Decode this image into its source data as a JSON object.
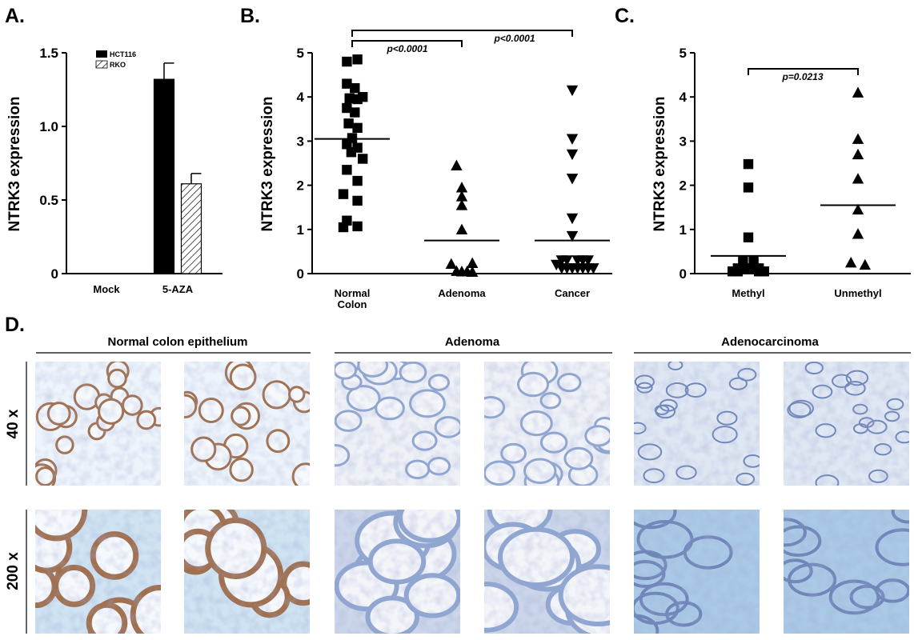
{
  "panels": {
    "A": {
      "letter": "A."
    },
    "B": {
      "letter": "B."
    },
    "C": {
      "letter": "C."
    },
    "D": {
      "letter": "D."
    }
  },
  "chart_data": [
    {
      "id": "A",
      "type": "bar",
      "ylabel": "NTRK3 expression",
      "categories": [
        "Mock",
        "5-AZA"
      ],
      "series": [
        {
          "name": "HCT116",
          "values": [
            0,
            1.32
          ],
          "errors": [
            0,
            0.11
          ],
          "color": "#000000",
          "pattern": "solid"
        },
        {
          "name": "RKO",
          "values": [
            0,
            0.61
          ],
          "errors": [
            0,
            0.07
          ],
          "color": "#ffffff",
          "pattern": "hatched"
        }
      ],
      "ylim": [
        0,
        1.5
      ],
      "yticks": [
        0,
        0.5,
        1.0,
        1.5
      ],
      "ytick_labels": [
        "0",
        "0.5",
        "1.0",
        "1.5"
      ],
      "legend": "top-left",
      "grid": false
    },
    {
      "id": "B",
      "type": "scatter",
      "ylabel": "NTRK3 expression",
      "categories": [
        "Normal Colon",
        "Adenoma",
        "Cancer"
      ],
      "category_labels": [
        [
          "Normal",
          "Colon"
        ],
        [
          "Adenoma"
        ],
        [
          "Cancer"
        ]
      ],
      "ylim": [
        0,
        5
      ],
      "yticks": [
        0,
        1,
        2,
        3,
        4,
        5
      ],
      "groups": [
        {
          "name": "Normal Colon",
          "marker": "square",
          "mean": 3.05,
          "points": [
            [
              -0.3,
              4.8
            ],
            [
              0.3,
              4.85
            ],
            [
              -0.3,
              4.3
            ],
            [
              0.15,
              4.2
            ],
            [
              -0.15,
              3.97
            ],
            [
              0.3,
              3.95
            ],
            [
              0.6,
              4.0
            ],
            [
              -0.3,
              3.75
            ],
            [
              0.15,
              3.65
            ],
            [
              -0.2,
              3.4
            ],
            [
              0.3,
              3.3
            ],
            [
              0,
              3.07
            ],
            [
              -0.3,
              2.93
            ],
            [
              0.3,
              2.85
            ],
            [
              -0.05,
              2.75
            ],
            [
              0.6,
              2.6
            ],
            [
              -0.3,
              2.35
            ],
            [
              0.3,
              2.1
            ],
            [
              -0.5,
              1.8
            ],
            [
              0.3,
              1.65
            ],
            [
              -0.3,
              1.2
            ],
            [
              -0.5,
              1.05
            ],
            [
              0.3,
              1.07
            ]
          ]
        },
        {
          "name": "Adenoma",
          "marker": "triangle-up",
          "mean": 0.75,
          "points": [
            [
              -0.3,
              2.45
            ],
            [
              0,
              1.95
            ],
            [
              0,
              1.75
            ],
            [
              0,
              1.55
            ],
            [
              0,
              1.0
            ],
            [
              -0.6,
              0.22
            ],
            [
              0.6,
              0.24
            ],
            [
              -0.3,
              0.06
            ],
            [
              0,
              0.05
            ],
            [
              0.3,
              0.05
            ],
            [
              0.6,
              0.04
            ]
          ]
        },
        {
          "name": "Cancer",
          "marker": "triangle-down",
          "mean": 0.75,
          "points": [
            [
              0,
              4.15
            ],
            [
              0,
              3.05
            ],
            [
              0,
              2.7
            ],
            [
              0,
              2.15
            ],
            [
              0,
              1.25
            ],
            [
              0,
              0.85
            ],
            [
              -0.6,
              0.3
            ],
            [
              -0.3,
              0.3
            ],
            [
              0.3,
              0.3
            ],
            [
              0.6,
              0.3
            ],
            [
              0.9,
              0.3
            ],
            [
              -0.9,
              0.2
            ],
            [
              -0.6,
              0.12
            ],
            [
              -0.3,
              0.12
            ],
            [
              0,
              0.12
            ],
            [
              0.3,
              0.12
            ],
            [
              0.6,
              0.12
            ],
            [
              0.9,
              0.12
            ],
            [
              1.2,
              0.12
            ]
          ]
        }
      ],
      "significance": [
        {
          "from": "Normal Colon",
          "to": "Adenoma",
          "label": "p<0.0001"
        },
        {
          "from": "Normal Colon",
          "to": "Cancer",
          "label": "p<0.0001"
        }
      ],
      "grid": false
    },
    {
      "id": "C",
      "type": "scatter",
      "ylabel": "NTRK3 expression",
      "categories": [
        "Methyl",
        "Unmethyl"
      ],
      "ylim": [
        0,
        5
      ],
      "yticks": [
        0,
        1,
        2,
        3,
        4,
        5
      ],
      "groups": [
        {
          "name": "Methyl",
          "marker": "square",
          "mean": 0.4,
          "points": [
            [
              0,
              2.48
            ],
            [
              0,
              1.95
            ],
            [
              0,
              0.82
            ],
            [
              -0.3,
              0.3
            ],
            [
              0.3,
              0.3
            ],
            [
              -0.6,
              0.12
            ],
            [
              -0.3,
              0.12
            ],
            [
              0,
              0.12
            ],
            [
              0.3,
              0.12
            ],
            [
              0.6,
              0.12
            ],
            [
              -0.9,
              0.05
            ],
            [
              -0.6,
              0.05
            ],
            [
              0.6,
              0.05
            ],
            [
              0.9,
              0.05
            ]
          ]
        },
        {
          "name": "Unmethyl",
          "marker": "triangle-up",
          "mean": 1.55,
          "points": [
            [
              0,
              4.1
            ],
            [
              0,
              3.05
            ],
            [
              0,
              2.7
            ],
            [
              0,
              2.15
            ],
            [
              0,
              1.45
            ],
            [
              0,
              0.9
            ],
            [
              -0.4,
              0.25
            ],
            [
              0.4,
              0.2
            ]
          ]
        }
      ],
      "significance": [
        {
          "from": "Methyl",
          "to": "Unmethyl",
          "label": "p=0.0213"
        }
      ],
      "grid": false
    }
  ],
  "histology": {
    "columns": [
      {
        "key": "normal",
        "title": "Normal colon epithelium"
      },
      {
        "key": "adenoma",
        "title": "Adenoma"
      },
      {
        "key": "carcinoma",
        "title": "Adenocarcinoma"
      }
    ],
    "rows": [
      {
        "key": "low",
        "label": "40 x"
      },
      {
        "key": "high",
        "label": "200 x"
      }
    ],
    "stain_colors": {
      "tissue_brown": "#a0704f",
      "hematoxylin_blue": "#8fa6d0",
      "background": "#eef4fb"
    }
  }
}
